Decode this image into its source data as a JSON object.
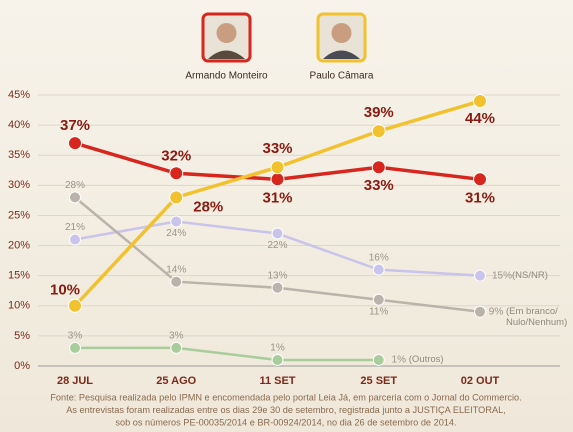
{
  "chart_data": {
    "type": "line",
    "categories": [
      "28 JUL",
      "25 AGO",
      "11 SET",
      "25 SET",
      "02 OUT"
    ],
    "ylim": [
      0,
      45
    ],
    "yticks": [
      {
        "value": 0,
        "label": "0%"
      },
      {
        "value": 5,
        "label": "5%"
      },
      {
        "value": 10,
        "label": "10%"
      },
      {
        "value": 15,
        "label": "15%"
      },
      {
        "value": 20,
        "label": "20%"
      },
      {
        "value": 25,
        "label": "25%"
      },
      {
        "value": 30,
        "label": "30%"
      },
      {
        "value": 35,
        "label": "35%"
      },
      {
        "value": 40,
        "label": "40%"
      },
      {
        "value": 45,
        "label": "45%"
      }
    ],
    "grid": true,
    "series": [
      {
        "name": "Armando Monteiro",
        "color": "#d7261e",
        "values": [
          37,
          32,
          31,
          33,
          31
        ],
        "value_labels": [
          "37%",
          "32%",
          "31%",
          "33%",
          "31%"
        ]
      },
      {
        "name": "Paulo Câmara",
        "color": "#f2c12e",
        "values": [
          10,
          28,
          33,
          39,
          44
        ],
        "value_labels": [
          "10%",
          "28%",
          "33%",
          "39%",
          "44%"
        ]
      },
      {
        "name": "(NS/NR)",
        "color": "#c9c4ea",
        "values": [
          21,
          24,
          22,
          16,
          15
        ],
        "value_labels": [
          "21%",
          "24%",
          "22%",
          "16%",
          "15%"
        ]
      },
      {
        "name": "(Em branco/ Nulo/Nenhum)",
        "color": "#b9b3a9",
        "values": [
          28,
          14,
          13,
          11,
          9
        ],
        "value_labels": [
          "28%",
          "14%",
          "13%",
          "11%",
          "9%"
        ]
      },
      {
        "name": "(Outros)",
        "color": "#a9cc9b",
        "values": [
          3,
          3,
          1,
          1,
          null
        ],
        "value_labels": [
          "3%",
          "3%",
          "1%",
          "1%",
          null
        ]
      }
    ],
    "notes": [
      "Fonte: Pesquisa realizada pelo IPMN e encomendada pelo portal Leia Já, em parceria com o Jornal do Commercio.",
      "As entrevistas foram realizadas entre os dias 29e 30 de setembro, registrada junto a JUSTIÇA ELEITORAL,",
      "sob os números PE-00035/2014 e BR-00924/2014, no dia 26 de setembro de 2014."
    ]
  }
}
